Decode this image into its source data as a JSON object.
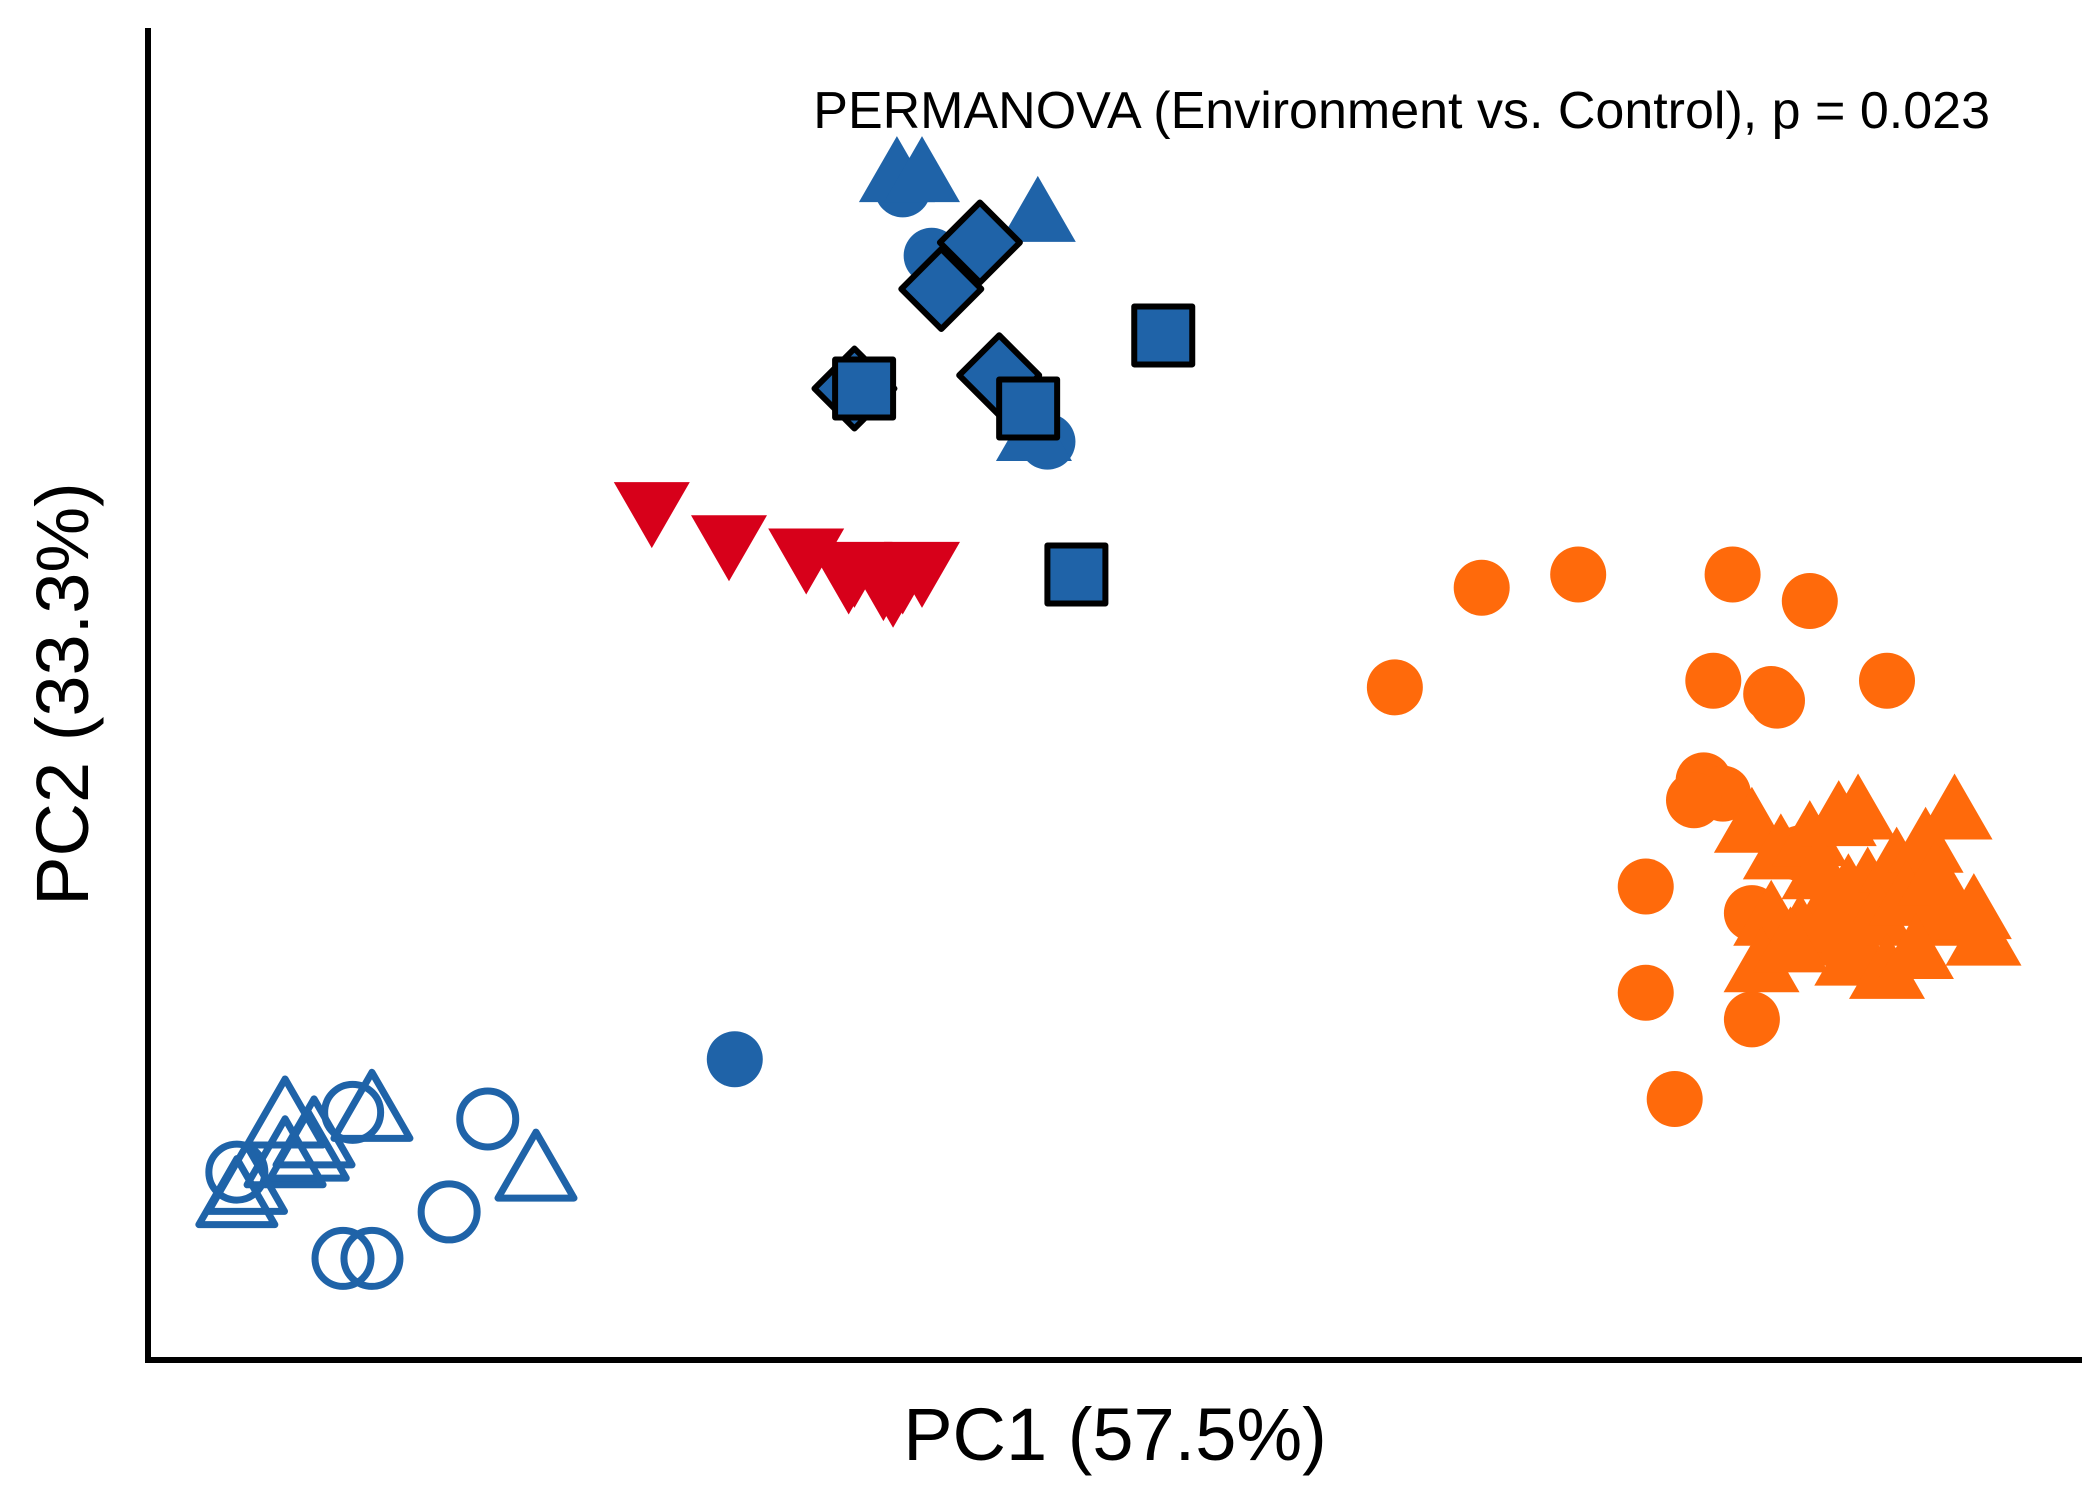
{
  "chart_data": {
    "type": "scatter",
    "title": "",
    "xlabel": "PC1 (57.5%)",
    "ylabel": "PC2 (33.3%)",
    "annotation": "PERMANOVA (Environment vs. Control), p = 0.023",
    "xlim": [
      0,
      100
    ],
    "ylim": [
      0,
      100
    ],
    "grid": false,
    "legend": "none",
    "series": [
      {
        "color": "#1f63a8",
        "marker": "circle",
        "fill": true,
        "points": [
          [
            39,
            88
          ],
          [
            40.5,
            83
          ],
          [
            46.5,
            69
          ],
          [
            30.3,
            22.5
          ]
        ]
      },
      {
        "color": "#1f63a8",
        "marker": "triangle-up",
        "fill": true,
        "points": [
          [
            38.7,
            89
          ],
          [
            40,
            89
          ],
          [
            46,
            86
          ],
          [
            45.8,
            69.5
          ]
        ]
      },
      {
        "color": "#1f63a8",
        "marker": "diamond",
        "fill": true,
        "outline": "#000000",
        "points": [
          [
            43,
            84
          ],
          [
            41,
            80.5
          ],
          [
            36.5,
            73
          ],
          [
            44,
            74
          ]
        ]
      },
      {
        "color": "#1f63a8",
        "marker": "square",
        "fill": true,
        "outline": "#000000",
        "points": [
          [
            52.5,
            77
          ],
          [
            37,
            73
          ],
          [
            45.5,
            71.5
          ],
          [
            48,
            59
          ]
        ]
      },
      {
        "color": "#d7001a",
        "marker": "triangle-down",
        "fill": true,
        "points": [
          [
            26,
            64
          ],
          [
            30,
            61.5
          ],
          [
            34,
            60.5
          ],
          [
            36.5,
            59.5
          ],
          [
            38,
            58.5
          ],
          [
            38.5,
            58
          ],
          [
            39,
            59
          ],
          [
            40,
            59.5
          ],
          [
            36.2,
            59
          ]
        ]
      },
      {
        "color": "#ff6a0b",
        "marker": "circle",
        "fill": true,
        "points": [
          [
            69,
            58
          ],
          [
            74,
            59
          ],
          [
            82,
            59
          ],
          [
            86,
            57
          ],
          [
            64.5,
            50.5
          ],
          [
            81,
            51
          ],
          [
            84,
            50
          ],
          [
            84.3,
            49.5
          ],
          [
            90,
            51
          ],
          [
            80.5,
            43.5
          ],
          [
            81.5,
            42.5
          ],
          [
            80,
            42
          ],
          [
            77.5,
            35.5
          ],
          [
            83,
            33.5
          ],
          [
            85.5,
            38
          ],
          [
            77.5,
            27.5
          ],
          [
            83,
            25.5
          ],
          [
            79,
            19.5
          ]
        ]
      },
      {
        "color": "#ff6a0b",
        "marker": "triangle-up",
        "fill": true,
        "points": [
          [
            83,
            40
          ],
          [
            84.5,
            38
          ],
          [
            86,
            39
          ],
          [
            87.5,
            40.5
          ],
          [
            88.5,
            41
          ],
          [
            86.5,
            36.5
          ],
          [
            87,
            34
          ],
          [
            88,
            35
          ],
          [
            89,
            35.5
          ],
          [
            90.5,
            37
          ],
          [
            92,
            38.5
          ],
          [
            93.5,
            41
          ],
          [
            84,
            33
          ],
          [
            85.5,
            32
          ],
          [
            87,
            32.5
          ],
          [
            88.2,
            31.5
          ],
          [
            89.5,
            33
          ],
          [
            91,
            34.5
          ],
          [
            92.5,
            36
          ],
          [
            93,
            33
          ],
          [
            94.5,
            33.5
          ],
          [
            95,
            31.5
          ],
          [
            83.5,
            29.5
          ],
          [
            85,
            31
          ],
          [
            88.2,
            30
          ],
          [
            90,
            29
          ],
          [
            91.5,
            30.5
          ]
        ]
      },
      {
        "color": "#1f63a8",
        "marker": "circle",
        "fill": false,
        "points": [
          [
            4.5,
            14
          ],
          [
            10.5,
            18.5
          ],
          [
            17.5,
            18
          ],
          [
            15.5,
            11
          ],
          [
            10,
            7.5
          ],
          [
            11.5,
            7.5
          ]
        ]
      },
      {
        "color": "#1f63a8",
        "marker": "triangle-up",
        "fill": false,
        "points": [
          [
            7,
            18
          ],
          [
            11.5,
            18.5
          ],
          [
            8.5,
            16.5
          ],
          [
            8.2,
            15.5
          ],
          [
            7,
            15
          ],
          [
            5,
            13
          ],
          [
            4.5,
            12
          ],
          [
            20,
            14
          ]
        ]
      }
    ]
  }
}
